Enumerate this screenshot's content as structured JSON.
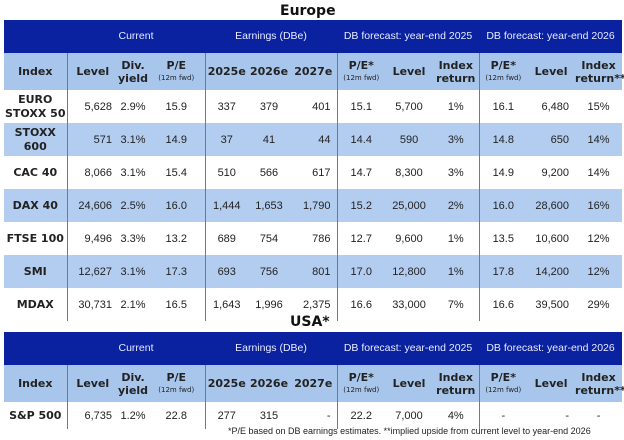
{
  "europe": {
    "title": "Europe",
    "rows": [
      [
        "EURO STOXX 50",
        "5,628",
        "2.9%",
        "15.9",
        "337",
        "379",
        "401",
        "15.1",
        "5,700",
        "1%",
        "16.1",
        "6,480",
        "15%"
      ],
      [
        "STOXX 600",
        "571",
        "3.1%",
        "14.9",
        "37",
        "41",
        "44",
        "14.4",
        "590",
        "3%",
        "14.8",
        "650",
        "14%"
      ],
      [
        "CAC 40",
        "8,066",
        "3.1%",
        "15.4",
        "510",
        "566",
        "617",
        "14.7",
        "8,300",
        "3%",
        "14.9",
        "9,200",
        "14%"
      ],
      [
        "DAX 40",
        "24,606",
        "2.5%",
        "16.0",
        "1,444",
        "1,653",
        "1,790",
        "15.2",
        "25,000",
        "2%",
        "16.0",
        "28,600",
        "16%"
      ],
      [
        "FTSE 100",
        "9,496",
        "3.3%",
        "13.2",
        "689",
        "754",
        "786",
        "12.7",
        "9,600",
        "1%",
        "13.5",
        "10,600",
        "12%"
      ],
      [
        "SMI",
        "12,627",
        "3.1%",
        "17.3",
        "693",
        "756",
        "801",
        "17.0",
        "12,800",
        "1%",
        "17.8",
        "14,200",
        "12%"
      ],
      [
        "MDAX",
        "30,731",
        "2.1%",
        "16.5",
        "1,643",
        "1,996",
        "2,375",
        "16.6",
        "33,000",
        "7%",
        "16.6",
        "39,500",
        "29%"
      ]
    ]
  },
  "usa": {
    "title": "USA*",
    "rows": [
      [
        "S&P 500",
        "6,735",
        "1.2%",
        "22.8",
        "277",
        "315",
        "-",
        "22.2",
        "7,000",
        "4%",
        "-",
        "-",
        "-"
      ]
    ]
  },
  "groups": {
    "current": "Current",
    "earnings": "Earnings (DBe)",
    "fc2025": "DB forecast: year-end 2025",
    "fc2026": "DB forecast: year-end 2026"
  },
  "columns": {
    "index": "Index",
    "level": "Level",
    "div": "Div. yield",
    "pe": "P/E",
    "pe_sub": "(12m fwd)",
    "e2025": "2025e",
    "e2026": "2026e",
    "e2027": "2027e",
    "pe_star": "P/E*",
    "index_return": "Index return",
    "index_return2": "Index return**"
  },
  "footnote": "*P/E based on DB earnings estimates. **implied upside from current level to year-end 2026",
  "colors": {
    "header": "#0a22a0",
    "subheader": "#a8c6ec",
    "stripe": "#b3cdf0"
  }
}
